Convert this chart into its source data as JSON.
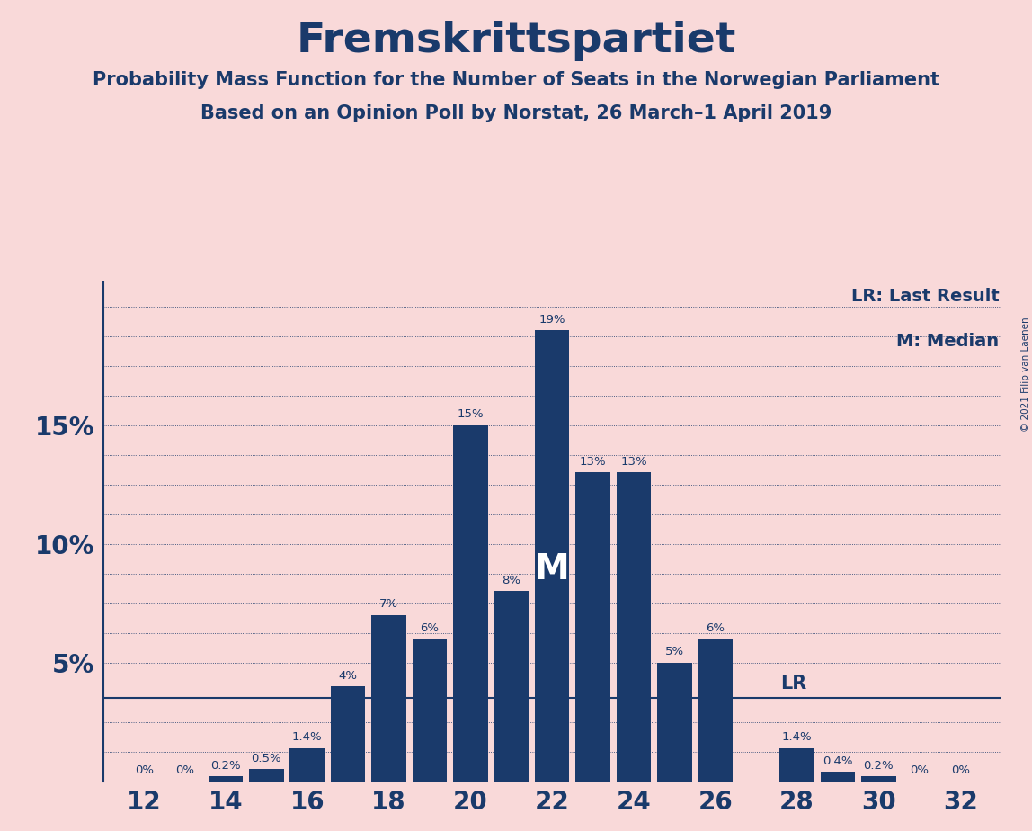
{
  "title": "Fremskrittspartiet",
  "subtitle1": "Probability Mass Function for the Number of Seats in the Norwegian Parliament",
  "subtitle2": "Based on an Opinion Poll by Norstat, 26 March–1 April 2019",
  "copyright": "© 2021 Filip van Laenen",
  "seats": [
    12,
    13,
    14,
    15,
    16,
    17,
    18,
    19,
    20,
    21,
    22,
    23,
    24,
    25,
    26,
    27,
    28,
    29,
    30,
    31,
    32
  ],
  "probs": [
    0.0,
    0.0,
    0.2,
    0.5,
    1.4,
    4.0,
    7.0,
    6.0,
    15.0,
    8.0,
    19.0,
    13.0,
    13.0,
    5.0,
    6.0,
    0.0,
    1.4,
    0.4,
    0.2,
    0.0,
    0.0
  ],
  "labels": [
    "0%",
    "0%",
    "0.2%",
    "0.5%",
    "1.4%",
    "4%",
    "7%",
    "6%",
    "15%",
    "8%",
    "19%",
    "13%",
    "13%",
    "5%",
    "6%",
    "",
    "1.4%",
    "0.4%",
    "0.2%",
    "0%",
    "0%"
  ],
  "bar_color": "#1a3a6b",
  "bg_color": "#f9d9d9",
  "text_color": "#1a3a6b",
  "median_seat": 22,
  "lr_seat": 27,
  "lr_value": 3.5,
  "lr_label": "LR",
  "median_label": "M",
  "legend_lr": "LR: Last Result",
  "legend_m": "M: Median",
  "xlim": [
    11,
    33
  ],
  "ylim": [
    0,
    21
  ],
  "xlabel_ticks": [
    12,
    14,
    16,
    18,
    20,
    22,
    24,
    26,
    28,
    30,
    32
  ],
  "grid_lines": [
    0.0,
    1.25,
    2.5,
    3.75,
    5.0,
    6.25,
    7.5,
    8.75,
    10.0,
    11.25,
    12.5,
    13.75,
    15.0,
    16.25,
    17.5,
    18.75,
    20.0
  ]
}
